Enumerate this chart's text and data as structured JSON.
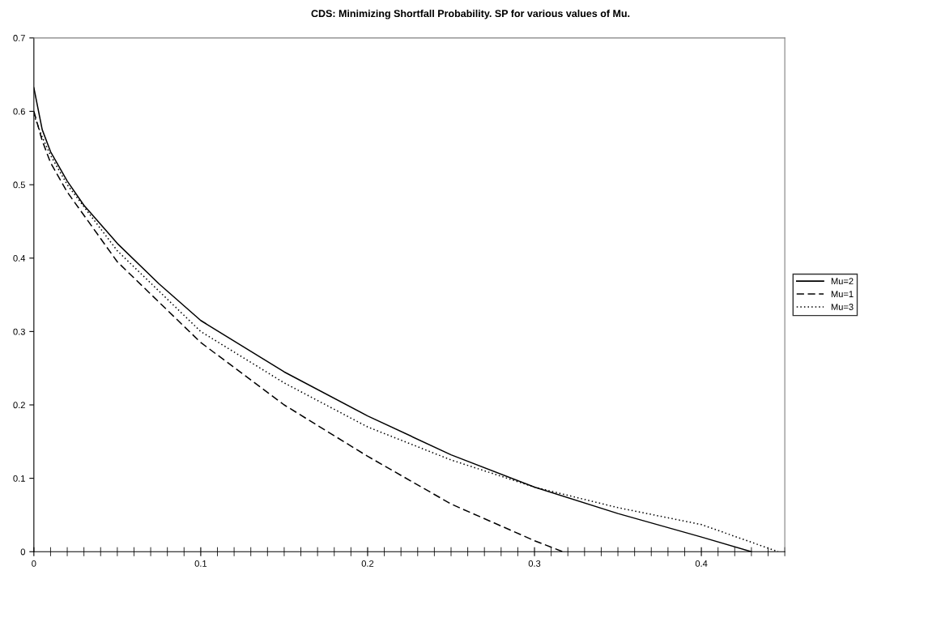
{
  "chart_data": {
    "type": "line",
    "title": "CDS: Minimizing Shortfall Probability. SP for various values of Mu.",
    "xlim": [
      0,
      0.45
    ],
    "xticks": [
      0,
      0.1,
      0.2,
      0.3,
      0.4
    ],
    "ylim": [
      0,
      0.7
    ],
    "yticks": [
      0,
      0.1,
      0.2,
      0.3,
      0.4,
      0.5,
      0.6,
      0.7
    ],
    "grid": false,
    "legend": "right",
    "marker": "none",
    "series": [
      {
        "name": "Mu=2",
        "color": "#000000",
        "line_style": "solid",
        "x": [
          0,
          0.005,
          0.01,
          0.02,
          0.03,
          0.05,
          0.075,
          0.1,
          0.15,
          0.2,
          0.25,
          0.3,
          0.35,
          0.4,
          0.43
        ],
        "values": [
          0.632,
          0.575,
          0.545,
          0.505,
          0.472,
          0.42,
          0.365,
          0.315,
          0.245,
          0.185,
          0.132,
          0.088,
          0.052,
          0.02,
          0
        ]
      },
      {
        "name": "Mu=1",
        "color": "#000000",
        "line_style": "dashed",
        "x": [
          0,
          0.005,
          0.01,
          0.02,
          0.05,
          0.1,
          0.15,
          0.2,
          0.25,
          0.3,
          0.317
        ],
        "values": [
          0.6,
          0.56,
          0.53,
          0.49,
          0.395,
          0.285,
          0.2,
          0.13,
          0.065,
          0.015,
          0
        ]
      },
      {
        "name": "Mu=3",
        "color": "#000000",
        "line_style": "dotted",
        "x": [
          0,
          0.005,
          0.01,
          0.02,
          0.05,
          0.1,
          0.15,
          0.2,
          0.25,
          0.3,
          0.35,
          0.4,
          0.446
        ],
        "values": [
          0.595,
          0.565,
          0.54,
          0.5,
          0.41,
          0.3,
          0.23,
          0.17,
          0.125,
          0.088,
          0.06,
          0.037,
          0
        ]
      }
    ]
  }
}
